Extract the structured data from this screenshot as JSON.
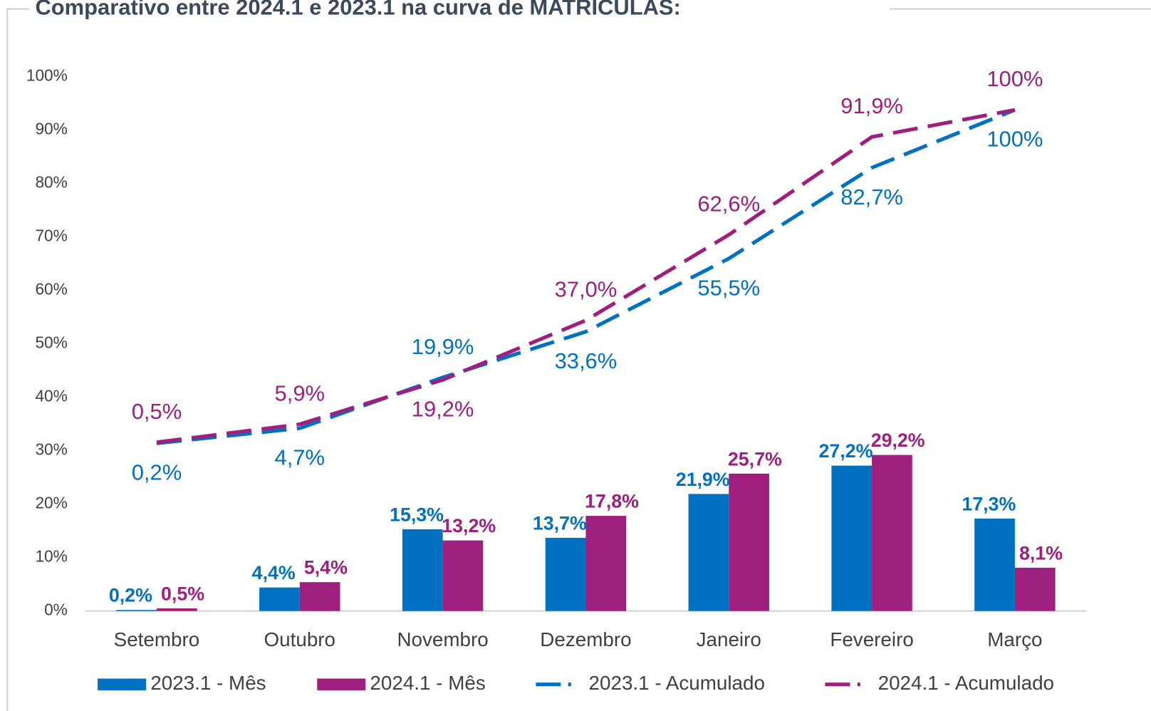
{
  "chart_data": {
    "type": "bar_line",
    "title": "Comparativo entre 2024.1 e 2023.1 na curva de MATRÍCULAS:",
    "categories": [
      "Setembro",
      "Outubro",
      "Novembro",
      "Dezembro",
      "Janeiro",
      "Fevereiro",
      "Março"
    ],
    "ylim": [
      0,
      100
    ],
    "yticks": [
      {
        "value": 0,
        "label": "0%"
      },
      {
        "value": 10,
        "label": "10%"
      },
      {
        "value": 20,
        "label": "20%"
      },
      {
        "value": 30,
        "label": "30%"
      },
      {
        "value": 40,
        "label": "40%"
      },
      {
        "value": 50,
        "label": "50%"
      },
      {
        "value": 60,
        "label": "60%"
      },
      {
        "value": 70,
        "label": "70%"
      },
      {
        "value": 80,
        "label": "80%"
      },
      {
        "value": 90,
        "label": "90%"
      },
      {
        "value": 100,
        "label": "100%"
      }
    ],
    "y2lim": [
      -50,
      110
    ],
    "series": [
      {
        "name": "2023.1 - Mês",
        "kind": "bar",
        "color": "#0070c0",
        "values": [
          0.2,
          4.4,
          15.3,
          13.7,
          21.9,
          27.2,
          17.3
        ],
        "value_labels": [
          "0,2%",
          "4,4%",
          "15,3%",
          "13,7%",
          "21,9%",
          "27,2%",
          "17,3%"
        ]
      },
      {
        "name": "2024.1 - Mês",
        "kind": "bar",
        "color": "#9e1f7e",
        "values": [
          0.5,
          5.4,
          13.2,
          17.8,
          25.7,
          29.2,
          8.1
        ],
        "value_labels": [
          "0,5%",
          "5,4%",
          "13,2%",
          "17,8%",
          "25,7%",
          "29,2%",
          "8,1%"
        ]
      },
      {
        "name": "2023.1 - Acumulado",
        "kind": "line",
        "axis": "y2",
        "color": "#0070c0",
        "values": [
          0.2,
          4.7,
          19.9,
          33.6,
          55.5,
          82.7,
          100
        ],
        "value_labels": [
          "0,2%",
          "4,7%",
          "19,9%",
          "33,6%",
          "55,5%",
          "82,7%",
          "100%"
        ]
      },
      {
        "name": "2024.1 - Acumulado",
        "kind": "line",
        "axis": "y2",
        "color": "#9e1f7e",
        "values": [
          0.5,
          5.9,
          19.2,
          37.0,
          62.6,
          91.9,
          100
        ],
        "value_labels": [
          "0,5%",
          "5,9%",
          "19,2%",
          "37,0%",
          "62,6%",
          "91,9%",
          "100%"
        ]
      }
    ]
  }
}
